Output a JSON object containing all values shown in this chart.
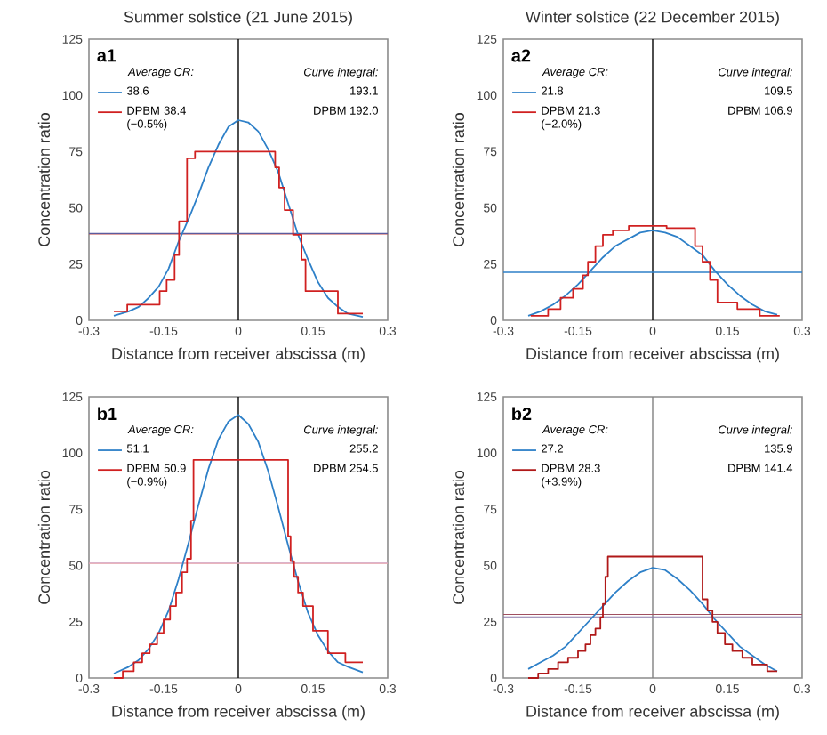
{
  "chart_data": [
    {
      "type": "line",
      "title": "Summer solstice (21 June 2015)",
      "xlabel": "Distance from receiver abscissa (m)",
      "ylabel": "Concentration ratio",
      "xlim": [
        -0.3,
        0.3
      ],
      "xticks": [
        -0.3,
        -0.15,
        0,
        0.15,
        0.3
      ],
      "ylim": [
        0,
        125
      ],
      "yticks": [
        0,
        25,
        50,
        75,
        100,
        125
      ],
      "legend": "top left",
      "annotations": [
        "a1",
        "Average CR:",
        "Curve integral:",
        "193.1",
        "DPBM 192.0"
      ],
      "ref_lines": [
        {
          "axis": "x",
          "value": 0,
          "color": "#000000"
        },
        {
          "axis": "y",
          "value": 38.4,
          "color": "#c04848"
        },
        {
          "axis": "y",
          "value": 38.6,
          "color": "#5b5b9e"
        }
      ],
      "series": [
        {
          "name": "38.6",
          "color": "#2e80c8",
          "x": [
            -0.25,
            -0.22,
            -0.2,
            -0.18,
            -0.16,
            -0.14,
            -0.12,
            -0.1,
            -0.08,
            -0.06,
            -0.04,
            -0.02,
            0,
            0.02,
            0.04,
            0.06,
            0.08,
            0.1,
            0.12,
            0.14,
            0.16,
            0.18,
            0.2,
            0.22,
            0.25
          ],
          "values": [
            2,
            4,
            6,
            10,
            15,
            23,
            35,
            45,
            56,
            68,
            78,
            86,
            89,
            88,
            84,
            76,
            66,
            52,
            38,
            27,
            17,
            10,
            6,
            3,
            1.5
          ]
        },
        {
          "name": "DPBM 38.4 (−0.5%)",
          "type": "step",
          "color": "#d02020",
          "x": [
            -0.25,
            -0.223,
            -0.158,
            -0.144,
            -0.128,
            -0.119,
            -0.103,
            -0.087,
            0.074,
            0.082,
            0.093,
            0.11,
            0.127,
            0.135,
            0.2,
            0.25
          ],
          "values": [
            4,
            7,
            13,
            18,
            29,
            44,
            72,
            75,
            68,
            59,
            49,
            38,
            27,
            13,
            3,
            3
          ]
        }
      ]
    },
    {
      "type": "line",
      "title": "Winter solstice (22 December 2015)",
      "xlabel": "Distance from receiver abscissa (m)",
      "ylabel": "Concentration ratio",
      "xlim": [
        -0.3,
        0.3
      ],
      "xticks": [
        -0.3,
        -0.15,
        0,
        0.15,
        0.3
      ],
      "ylim": [
        0,
        125
      ],
      "yticks": [
        0,
        25,
        50,
        75,
        100,
        125
      ],
      "legend": "top left",
      "annotations": [
        "a2",
        "Average CR:",
        "Curve integral:",
        "109.5",
        "DPBM 106.9"
      ],
      "ref_lines": [
        {
          "axis": "x",
          "value": 0,
          "color": "#000000"
        },
        {
          "axis": "y",
          "value": 21.3,
          "color": "#2e80c8"
        },
        {
          "axis": "y",
          "value": 21.8,
          "color": "#2e80c8"
        }
      ],
      "series": [
        {
          "name": "21.8",
          "color": "#2e80c8",
          "x": [
            -0.25,
            -0.225,
            -0.2,
            -0.175,
            -0.15,
            -0.125,
            -0.1,
            -0.075,
            -0.05,
            -0.025,
            0,
            0.025,
            0.05,
            0.075,
            0.1,
            0.125,
            0.15,
            0.175,
            0.2,
            0.225,
            0.25
          ],
          "values": [
            2,
            4,
            7,
            11,
            16,
            22,
            28,
            33,
            36,
            39,
            40,
            39,
            37,
            33,
            29,
            22,
            16,
            11,
            7,
            4,
            2.5
          ]
        },
        {
          "name": "DPBM 21.3 (−2.0%)",
          "type": "step",
          "color": "#d02020",
          "x": [
            -0.245,
            -0.21,
            -0.185,
            -0.16,
            -0.14,
            -0.13,
            -0.115,
            -0.1,
            -0.08,
            -0.048,
            0.028,
            0.085,
            0.1,
            0.115,
            0.13,
            0.17,
            0.215,
            0.255
          ],
          "values": [
            2,
            5,
            10,
            14,
            20,
            26,
            33,
            38,
            40,
            42,
            41,
            33,
            26,
            18,
            8,
            5,
            2,
            2
          ]
        }
      ]
    },
    {
      "type": "line",
      "xlabel": "Distance from receiver abscissa (m)",
      "ylabel": "Concentration ratio",
      "xlim": [
        -0.3,
        0.3
      ],
      "xticks": [
        -0.3,
        -0.15,
        0,
        0.15,
        0.3
      ],
      "ylim": [
        0,
        125
      ],
      "yticks": [
        0,
        25,
        50,
        75,
        100,
        125
      ],
      "legend": "top left",
      "annotations": [
        "b1",
        "Average CR:",
        "Curve integral:",
        "255.2",
        "DPBM 254.5"
      ],
      "ref_lines": [
        {
          "axis": "x",
          "value": 0,
          "color": "#000000"
        },
        {
          "axis": "y",
          "value": 50.9,
          "color": "#eea4a4"
        },
        {
          "axis": "y",
          "value": 51.1,
          "color": "#d0a0c0"
        }
      ],
      "series": [
        {
          "name": "51.1",
          "color": "#2e80c8",
          "x": [
            -0.25,
            -0.22,
            -0.2,
            -0.18,
            -0.16,
            -0.14,
            -0.12,
            -0.1,
            -0.08,
            -0.06,
            -0.04,
            -0.02,
            0,
            0.02,
            0.04,
            0.06,
            0.08,
            0.1,
            0.12,
            0.14,
            0.16,
            0.18,
            0.2,
            0.22,
            0.25
          ],
          "values": [
            2,
            5,
            8,
            13,
            20,
            30,
            44,
            60,
            77,
            93,
            106,
            114,
            117,
            113,
            105,
            92,
            76,
            59,
            43,
            29,
            19,
            12,
            7,
            5,
            2.5
          ]
        },
        {
          "name": "DPBM 50.9 (−0.9%)",
          "type": "step",
          "color": "#d02020",
          "x": [
            -0.25,
            -0.232,
            -0.21,
            -0.193,
            -0.178,
            -0.163,
            -0.15,
            -0.137,
            -0.125,
            -0.113,
            -0.103,
            -0.095,
            -0.09,
            0.1,
            0.105,
            0.112,
            0.12,
            0.13,
            0.15,
            0.18,
            0.215,
            0.25
          ],
          "values": [
            0,
            3,
            7,
            11,
            15,
            20,
            26,
            32,
            38,
            47,
            53,
            70,
            97,
            63,
            52,
            45,
            38,
            32,
            21,
            11,
            7,
            7
          ]
        }
      ]
    },
    {
      "type": "line",
      "xlabel": "Distance from receiver abscissa (m)",
      "ylabel": "Concentration ratio",
      "xlim": [
        -0.3,
        0.3
      ],
      "xticks": [
        -0.3,
        -0.15,
        0,
        0.15,
        0.3
      ],
      "ylim": [
        0,
        125
      ],
      "yticks": [
        0,
        25,
        50,
        75,
        100,
        125
      ],
      "legend": "top left",
      "annotations": [
        "b2",
        "Average CR:",
        "Curve integral:",
        "135.9",
        "DPBM 141.4"
      ],
      "ref_lines": [
        {
          "axis": "x",
          "value": 0,
          "color": "#808080"
        },
        {
          "axis": "y",
          "value": 27.2,
          "color": "#8a7aa8"
        },
        {
          "axis": "y",
          "value": 28.3,
          "color": "#a05060"
        }
      ],
      "series": [
        {
          "name": "27.2",
          "color": "#2e80c8",
          "x": [
            -0.25,
            -0.225,
            -0.2,
            -0.175,
            -0.15,
            -0.125,
            -0.1,
            -0.075,
            -0.05,
            -0.025,
            0,
            0.025,
            0.05,
            0.075,
            0.1,
            0.125,
            0.15,
            0.175,
            0.2,
            0.225,
            0.25
          ],
          "values": [
            4,
            7,
            10,
            14,
            20,
            26,
            32,
            38,
            43,
            47,
            49,
            48,
            44,
            39,
            33,
            26,
            20,
            14,
            10,
            6,
            3
          ]
        },
        {
          "name": "DPBM 28.3 (+3.9%)",
          "type": "step",
          "color": "#b01818",
          "x": [
            -0.25,
            -0.23,
            -0.21,
            -0.19,
            -0.17,
            -0.15,
            -0.135,
            -0.125,
            -0.115,
            -0.105,
            -0.1,
            -0.095,
            -0.09,
            0.1,
            0.11,
            0.12,
            0.13,
            0.145,
            0.16,
            0.18,
            0.2,
            0.23,
            0.25
          ],
          "values": [
            0,
            2,
            4,
            7,
            9,
            12,
            15,
            19,
            22,
            27,
            33,
            45,
            54,
            35,
            30,
            25,
            20,
            15,
            12,
            9,
            6,
            3,
            3
          ]
        }
      ]
    }
  ]
}
